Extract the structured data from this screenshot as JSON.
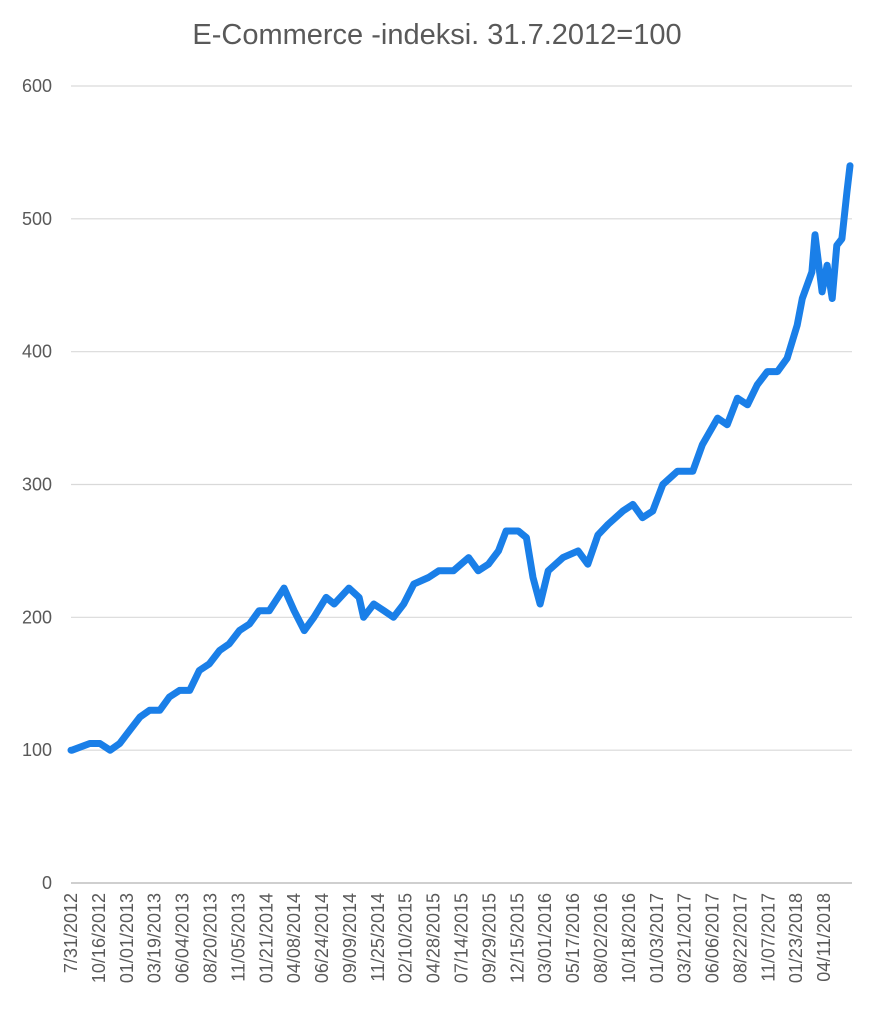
{
  "chart_data": {
    "type": "line",
    "title": "E-Commerce -indeksi. 31.7.2012=100",
    "xlabel": "",
    "ylabel": "",
    "ylim": [
      0,
      600
    ],
    "yticks": [
      0,
      100,
      200,
      300,
      400,
      500,
      600
    ],
    "grid": true,
    "line_color": "#1a7fe8",
    "xtick_step_trading_days": 55,
    "xlim_trading_days": [
      0,
      1540
    ],
    "xtick_labels": [
      "7/31/2012",
      "10/16/2012",
      "01/01/2013",
      "03/19/2013",
      "06/04/2013",
      "08/20/2013",
      "11/05/2013",
      "01/21/2014",
      "04/08/2014",
      "06/24/2014",
      "09/09/2014",
      "11/25/2014",
      "02/10/2015",
      "04/28/2015",
      "07/14/2015",
      "09/29/2015",
      "12/15/2015",
      "03/01/2016",
      "05/17/2016",
      "08/02/2016",
      "10/18/2016",
      "01/03/2017",
      "03/21/2017",
      "06/06/2017",
      "08/22/2017",
      "11/07/2017",
      "01/23/2018",
      "04/11/2018"
    ],
    "series": [
      {
        "name": "E-Commerce",
        "points": [
          [
            0,
            100
          ],
          [
            2,
            100
          ],
          [
            37,
            105
          ],
          [
            57,
            105
          ],
          [
            77,
            100
          ],
          [
            96,
            105
          ],
          [
            116,
            115
          ],
          [
            136,
            125
          ],
          [
            155,
            130
          ],
          [
            175,
            130
          ],
          [
            194,
            140
          ],
          [
            214,
            145
          ],
          [
            234,
            145
          ],
          [
            253,
            160
          ],
          [
            273,
            165
          ],
          [
            293,
            175
          ],
          [
            312,
            180
          ],
          [
            332,
            190
          ],
          [
            352,
            195
          ],
          [
            371,
            205
          ],
          [
            391,
            205
          ],
          [
            420,
            222
          ],
          [
            440,
            205
          ],
          [
            460,
            190
          ],
          [
            479,
            200
          ],
          [
            503,
            215
          ],
          [
            519,
            210
          ],
          [
            548,
            222
          ],
          [
            568,
            215
          ],
          [
            577,
            200
          ],
          [
            597,
            210
          ],
          [
            617,
            205
          ],
          [
            636,
            200
          ],
          [
            656,
            210
          ],
          [
            676,
            225
          ],
          [
            705,
            230
          ],
          [
            725,
            235
          ],
          [
            754,
            235
          ],
          [
            784,
            245
          ],
          [
            803,
            235
          ],
          [
            823,
            240
          ],
          [
            843,
            250
          ],
          [
            858,
            265
          ],
          [
            882,
            265
          ],
          [
            898,
            260
          ],
          [
            911,
            230
          ],
          [
            925,
            210
          ],
          [
            941,
            235
          ],
          [
            970,
            245
          ],
          [
            1000,
            250
          ],
          [
            1019,
            240
          ],
          [
            1039,
            262
          ],
          [
            1059,
            270
          ],
          [
            1088,
            280
          ],
          [
            1108,
            285
          ],
          [
            1127,
            275
          ],
          [
            1147,
            280
          ],
          [
            1167,
            300
          ],
          [
            1196,
            310
          ],
          [
            1226,
            310
          ],
          [
            1245,
            330
          ],
          [
            1275,
            350
          ],
          [
            1294,
            345
          ],
          [
            1314,
            365
          ],
          [
            1334,
            360
          ],
          [
            1353,
            375
          ],
          [
            1373,
            385
          ],
          [
            1393,
            385
          ],
          [
            1412,
            395
          ],
          [
            1432,
            420
          ],
          [
            1442,
            440
          ],
          [
            1461,
            460
          ],
          [
            1467,
            488
          ],
          [
            1481,
            445
          ],
          [
            1491,
            465
          ],
          [
            1501,
            440
          ],
          [
            1510,
            480
          ],
          [
            1520,
            485
          ],
          [
            1530,
            520
          ],
          [
            1536,
            540
          ]
        ]
      }
    ]
  }
}
